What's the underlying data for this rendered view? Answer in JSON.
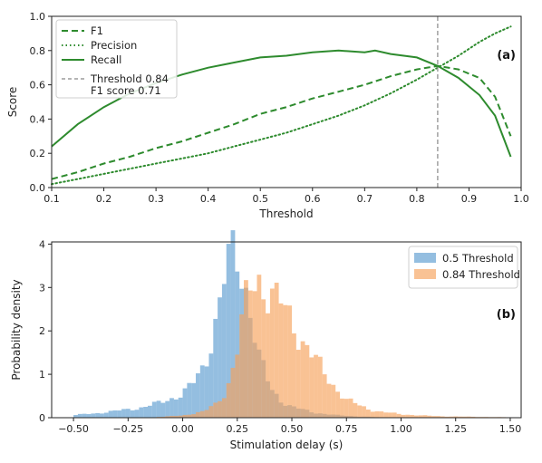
{
  "chart_data": [
    {
      "type": "line",
      "panel_label": "(a)",
      "xlabel": "Threshold",
      "ylabel": "Score",
      "xlim": [
        0.1,
        1.0
      ],
      "ylim": [
        0.0,
        1.0
      ],
      "x_ticks": [
        "0.1",
        "0.2",
        "0.3",
        "0.4",
        "0.5",
        "0.6",
        "0.7",
        "0.8",
        "0.9",
        "1.0"
      ],
      "y_ticks": [
        "0.0",
        "0.2",
        "0.4",
        "0.6",
        "0.8",
        "1.0"
      ],
      "legend_position": "upper-left",
      "series": [
        {
          "name": "F1",
          "style": "dashed",
          "color": "#2e8b2e",
          "x": [
            0.1,
            0.15,
            0.2,
            0.25,
            0.3,
            0.35,
            0.4,
            0.45,
            0.5,
            0.55,
            0.6,
            0.65,
            0.7,
            0.75,
            0.8,
            0.84,
            0.88,
            0.92,
            0.95,
            0.98
          ],
          "y": [
            0.05,
            0.09,
            0.14,
            0.18,
            0.23,
            0.27,
            0.32,
            0.37,
            0.43,
            0.47,
            0.52,
            0.56,
            0.6,
            0.65,
            0.69,
            0.71,
            0.69,
            0.64,
            0.53,
            0.3
          ]
        },
        {
          "name": "Precision",
          "style": "dotted",
          "color": "#2e8b2e",
          "x": [
            0.1,
            0.15,
            0.2,
            0.25,
            0.3,
            0.35,
            0.4,
            0.45,
            0.5,
            0.55,
            0.6,
            0.65,
            0.7,
            0.75,
            0.8,
            0.84,
            0.88,
            0.92,
            0.95,
            0.98
          ],
          "y": [
            0.02,
            0.05,
            0.08,
            0.11,
            0.14,
            0.17,
            0.2,
            0.24,
            0.28,
            0.32,
            0.37,
            0.42,
            0.48,
            0.55,
            0.63,
            0.7,
            0.77,
            0.85,
            0.9,
            0.94
          ]
        },
        {
          "name": "Recall",
          "style": "solid",
          "color": "#2e8b2e",
          "x": [
            0.1,
            0.15,
            0.2,
            0.25,
            0.3,
            0.35,
            0.4,
            0.45,
            0.5,
            0.55,
            0.6,
            0.65,
            0.7,
            0.72,
            0.75,
            0.8,
            0.84,
            0.88,
            0.92,
            0.95,
            0.98
          ],
          "y": [
            0.24,
            0.37,
            0.47,
            0.55,
            0.61,
            0.66,
            0.7,
            0.73,
            0.76,
            0.77,
            0.79,
            0.8,
            0.79,
            0.8,
            0.78,
            0.76,
            0.71,
            0.64,
            0.54,
            0.42,
            0.18
          ]
        }
      ],
      "threshold_line": {
        "x": 0.84,
        "color": "#888888",
        "style": "dashed",
        "legend_lines": [
          "Threshold 0.84",
          "F1 score 0.71"
        ]
      }
    },
    {
      "type": "histogram",
      "panel_label": "(b)",
      "xlabel": "Stimulation delay (s)",
      "ylabel": "Probability density",
      "xlim": [
        -0.6,
        1.55
      ],
      "ylim": [
        0,
        4.05
      ],
      "x_ticks": [
        "−0.50",
        "−0.25",
        "0.00",
        "0.25",
        "0.50",
        "0.75",
        "1.00",
        "1.25",
        "1.50"
      ],
      "x_tick_values": [
        -0.5,
        -0.25,
        0.0,
        0.25,
        0.5,
        0.75,
        1.0,
        1.25,
        1.5
      ],
      "y_ticks": [
        "0",
        "1",
        "2",
        "3",
        "4"
      ],
      "legend_position": "upper-right",
      "series": [
        {
          "name": "0.5 Threshold",
          "color": "#5b9bd0",
          "alpha": 0.65,
          "density_profile": [
            [
              -0.5,
              0.06
            ],
            [
              -0.4,
              0.1
            ],
            [
              -0.3,
              0.16
            ],
            [
              -0.2,
              0.22
            ],
            [
              -0.1,
              0.35
            ],
            [
              -0.05,
              0.45
            ],
            [
              0.0,
              0.55
            ],
            [
              0.05,
              0.8
            ],
            [
              0.1,
              1.2
            ],
            [
              0.15,
              2.2
            ],
            [
              0.2,
              3.4
            ],
            [
              0.24,
              3.8
            ],
            [
              0.27,
              3.4
            ],
            [
              0.3,
              2.8
            ],
            [
              0.35,
              1.4
            ],
            [
              0.4,
              0.7
            ],
            [
              0.45,
              0.4
            ],
            [
              0.5,
              0.25
            ],
            [
              0.6,
              0.12
            ],
            [
              0.7,
              0.06
            ],
            [
              0.8,
              0.03
            ],
            [
              0.95,
              0.0
            ]
          ]
        },
        {
          "name": "0.84 Threshold",
          "color": "#f6a25a",
          "alpha": 0.65,
          "density_profile": [
            [
              -0.1,
              0.02
            ],
            [
              0.0,
              0.05
            ],
            [
              0.1,
              0.15
            ],
            [
              0.15,
              0.3
            ],
            [
              0.2,
              0.6
            ],
            [
              0.25,
              1.6
            ],
            [
              0.3,
              2.9
            ],
            [
              0.35,
              3.2
            ],
            [
              0.4,
              2.9
            ],
            [
              0.45,
              2.6
            ],
            [
              0.5,
              2.2
            ],
            [
              0.55,
              1.8
            ],
            [
              0.6,
              1.4
            ],
            [
              0.65,
              1.0
            ],
            [
              0.7,
              0.7
            ],
            [
              0.75,
              0.42
            ],
            [
              0.8,
              0.3
            ],
            [
              0.85,
              0.2
            ],
            [
              0.9,
              0.14
            ],
            [
              1.0,
              0.08
            ],
            [
              1.1,
              0.05
            ],
            [
              1.2,
              0.03
            ],
            [
              1.35,
              0.02
            ],
            [
              1.5,
              0.01
            ]
          ]
        }
      ]
    }
  ]
}
